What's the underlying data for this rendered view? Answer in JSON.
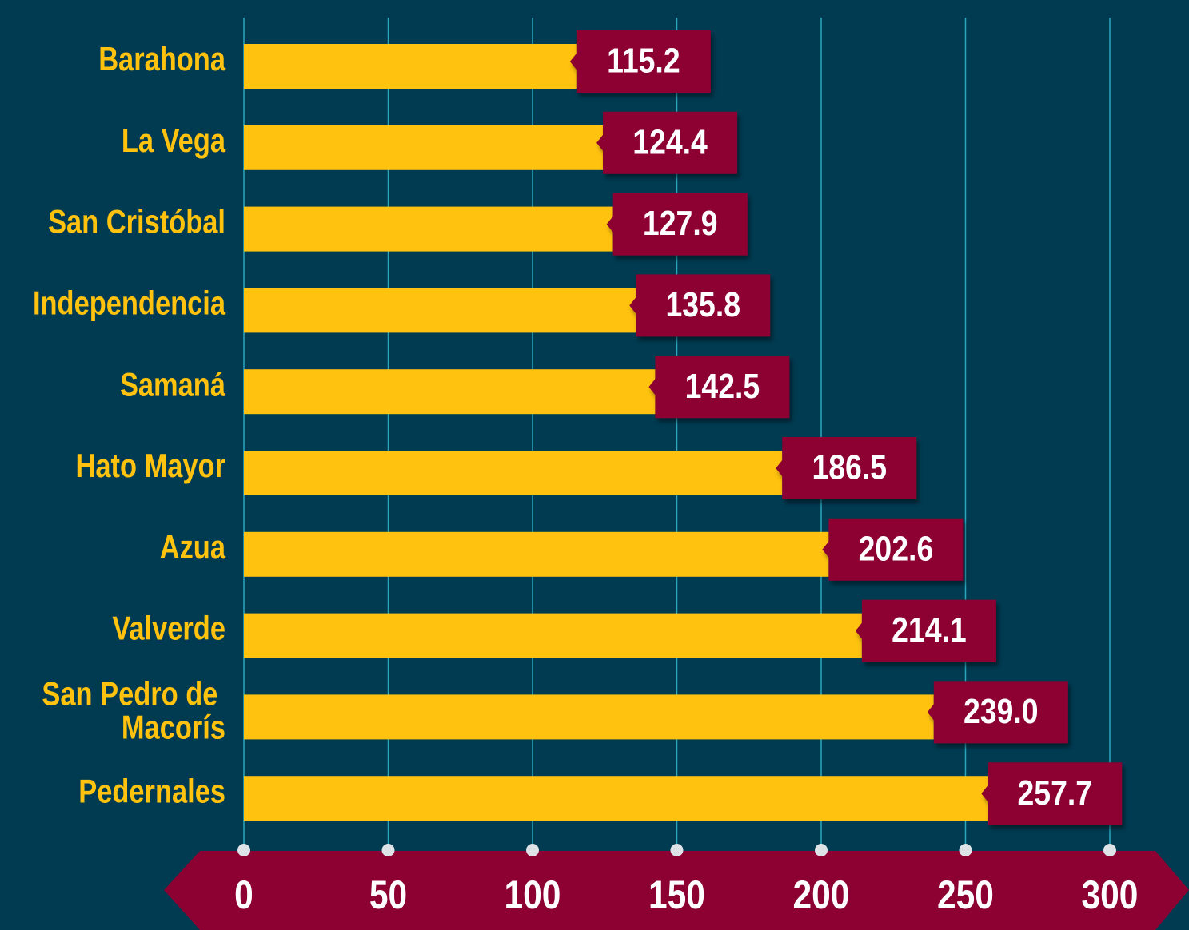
{
  "chart_data": {
    "type": "bar",
    "orientation": "horizontal",
    "categories": [
      "Barahona",
      "La Vega",
      "San Cristóbal",
      "Independencia",
      "Samaná",
      "Hato Mayor",
      "Azua",
      "Valverde",
      "San Pedro de Macorís",
      "Pedernales"
    ],
    "values": [
      115.2,
      124.4,
      127.9,
      135.8,
      142.5,
      186.5,
      202.6,
      214.1,
      239.0,
      257.7
    ],
    "value_labels": [
      "115.2",
      "124.4",
      "127.9",
      "135.8",
      "142.5",
      "186.5",
      "202.6",
      "214.1",
      "239.0",
      "257.7"
    ],
    "color": "#ffc20e",
    "label_color": "#8c0032",
    "background": "#003b52",
    "grid_color": "#2ba6bd",
    "xlim": [
      0,
      300
    ],
    "xticks": [
      0,
      50,
      100,
      150,
      200,
      250,
      300
    ],
    "grid": true
  }
}
